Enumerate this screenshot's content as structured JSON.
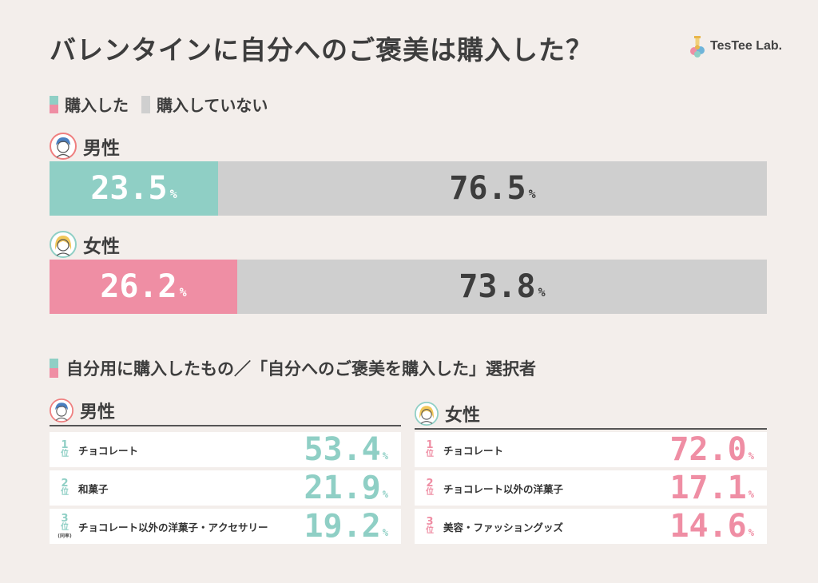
{
  "title": "バレンタインに自分へのご褒美は購入した？",
  "brand": "TesTee Lab.",
  "colors": {
    "male": "#8fcfc5",
    "female": "#ef8ea4",
    "none": "#cfcfcf",
    "text": "#3d3d3d"
  },
  "legend": {
    "bought": "購入した",
    "not_bought": "購入していない"
  },
  "section_title": "自分用に購入したもの／「自分へのご褒美を購入した」選択者",
  "rank_suffix": "位",
  "tie_note": "(同率)",
  "chart_data": [
    {
      "type": "bar",
      "stacked": true,
      "orientation": "horizontal",
      "title": "バレンタインに自分へのご褒美は購入した？",
      "categories": [
        "男性",
        "女性"
      ],
      "unit": "%",
      "series": [
        {
          "name": "購入した",
          "values": [
            23.5,
            26.2
          ]
        },
        {
          "name": "購入していない",
          "values": [
            76.5,
            73.8
          ]
        }
      ],
      "labels": {
        "bought": [
          "23.5",
          "26.2"
        ],
        "not_bought": [
          "76.5",
          "73.8"
        ]
      }
    },
    {
      "type": "table",
      "title": "自分用に購入したもの／「自分へのご褒美を購入した」選択者",
      "unit": "%",
      "groups": [
        {
          "name": "男性",
          "rows": [
            {
              "rank": "1",
              "item": "チョコレート",
              "value": "53.4"
            },
            {
              "rank": "2",
              "item": "和菓子",
              "value": "21.9"
            },
            {
              "rank": "3",
              "item": "チョコレート以外の洋菓子・アクセサリー",
              "value": "19.2",
              "tie": true
            }
          ]
        },
        {
          "name": "女性",
          "rows": [
            {
              "rank": "1",
              "item": "チョコレート",
              "value": "72.0"
            },
            {
              "rank": "2",
              "item": "チョコレート以外の洋菓子",
              "value": "17.1"
            },
            {
              "rank": "3",
              "item": "美容・ファッショングッズ",
              "value": "14.6"
            }
          ]
        }
      ]
    }
  ]
}
